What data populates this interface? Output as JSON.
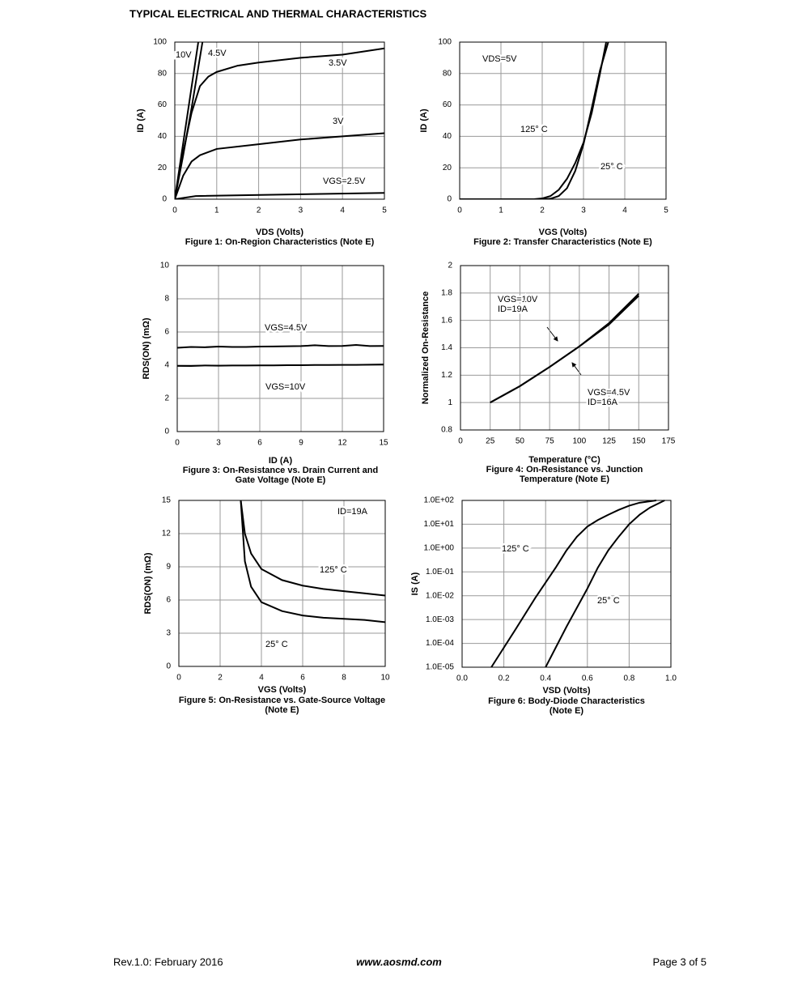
{
  "title": "TYPICAL ELECTRICAL AND THERMAL CHARACTERISTICS",
  "footer": {
    "left": "Rev.1.0: February 2016",
    "center": "www.aosmd.com",
    "right": "Page 3 of 5"
  },
  "chart_data": [
    {
      "type": "line",
      "xlabel": "VDS (Volts)",
      "ylabel": "ID (A)",
      "caption": [
        "Figure 1: On-Region Characteristics (Note E)"
      ],
      "xlim": [
        0,
        5
      ],
      "xticks": [
        0,
        1,
        2,
        3,
        4,
        5
      ],
      "ylim": [
        0,
        100
      ],
      "yticks": [
        0,
        20,
        40,
        60,
        80,
        100
      ],
      "grid": true,
      "series": [
        {
          "name": "10V",
          "color": "#000000",
          "x": [
            0,
            0.56
          ],
          "values": [
            0,
            100
          ]
        },
        {
          "name": "4.5V",
          "color": "#000000",
          "x": [
            0,
            0.2,
            0.4,
            0.66
          ],
          "values": [
            0,
            28,
            58,
            100
          ]
        },
        {
          "name": "3.5V",
          "color": "#000000",
          "x": [
            0,
            0.2,
            0.4,
            0.6,
            0.8,
            1,
            1.5,
            2,
            3,
            4,
            5
          ],
          "values": [
            0,
            30,
            55,
            72,
            78,
            81,
            85,
            87,
            90,
            92,
            96
          ]
        },
        {
          "name": "3V",
          "color": "#000000",
          "x": [
            0,
            0.2,
            0.4,
            0.6,
            1,
            2,
            3,
            4,
            5
          ],
          "values": [
            0,
            15,
            24,
            28,
            32,
            35,
            38,
            40,
            42
          ]
        },
        {
          "name": "VGS=2.5V",
          "color": "#000000",
          "x": [
            0,
            0.5,
            5
          ],
          "values": [
            0,
            2,
            4
          ]
        }
      ]
    },
    {
      "type": "line",
      "xlabel": "VGS (Volts)",
      "ylabel": "ID (A)",
      "caption": [
        "Figure 2: Transfer Characteristics (Note E)"
      ],
      "annotations": [
        "VDS=5V"
      ],
      "xlim": [
        0,
        5
      ],
      "xticks": [
        0,
        1,
        2,
        3,
        4,
        5
      ],
      "ylim": [
        0,
        100
      ],
      "yticks": [
        0,
        20,
        40,
        60,
        80,
        100
      ],
      "grid": true,
      "series": [
        {
          "name": "125° C",
          "color": "#000000",
          "x": [
            0,
            1.8,
            2.0,
            2.2,
            2.4,
            2.6,
            2.8,
            3.0,
            3.2,
            3.4,
            3.55
          ],
          "values": [
            0,
            0,
            0.5,
            2,
            6,
            13,
            23,
            36,
            55,
            80,
            100
          ]
        },
        {
          "name": "25° C",
          "color": "#000000",
          "x": [
            0,
            2.0,
            2.2,
            2.4,
            2.6,
            2.8,
            3.0,
            3.2,
            3.4,
            3.6
          ],
          "values": [
            0,
            0,
            0.3,
            2,
            7,
            18,
            35,
            58,
            82,
            100
          ]
        }
      ]
    },
    {
      "type": "line",
      "xlabel": "ID (A)",
      "ylabel": "RDS(ON) (mΩ)",
      "caption": [
        "Figure 3: On-Resistance vs. Drain Current and",
        "Gate Voltage (Note E)"
      ],
      "xlim": [
        0,
        15
      ],
      "xticks": [
        0,
        3,
        6,
        9,
        12,
        15
      ],
      "ylim": [
        0,
        10
      ],
      "yticks": [
        0,
        2,
        4,
        6,
        8,
        10
      ],
      "grid": true,
      "series": [
        {
          "name": "VGS=4.5V",
          "color": "#000000",
          "x": [
            0,
            1,
            2,
            3,
            4,
            5,
            6,
            7,
            8,
            9,
            10,
            11,
            12,
            13,
            14,
            15
          ],
          "values": [
            5.05,
            5.1,
            5.08,
            5.12,
            5.1,
            5.1,
            5.12,
            5.13,
            5.14,
            5.15,
            5.2,
            5.15,
            5.16,
            5.22,
            5.15,
            5.16
          ]
        },
        {
          "name": "VGS=10V",
          "color": "#000000",
          "x": [
            0,
            1,
            2,
            3,
            4,
            5,
            6,
            7,
            8,
            9,
            10,
            11,
            12,
            13,
            14,
            15
          ],
          "values": [
            3.96,
            3.95,
            3.98,
            3.97,
            3.98,
            3.98,
            3.99,
            3.99,
            4.0,
            4.0,
            4.01,
            4.01,
            4.02,
            4.02,
            4.03,
            4.04
          ]
        }
      ]
    },
    {
      "type": "line",
      "xlabel": "Temperature (°C)",
      "ylabel": "Normalized On-Resistance",
      "caption": [
        "Figure 4: On-Resistance vs. Junction",
        "Temperature (Note E)"
      ],
      "xlim": [
        0,
        175
      ],
      "xticks": [
        0,
        25,
        50,
        75,
        100,
        125,
        150,
        175
      ],
      "ylim": [
        0.8,
        2
      ],
      "yticks": [
        0.8,
        1,
        1.2,
        1.4,
        1.6,
        1.8,
        2
      ],
      "grid": true,
      "series": [
        {
          "name": "VGS=10V",
          "note": "ID=19A",
          "color": "#000000",
          "x": [
            25,
            50,
            75,
            100,
            125,
            150
          ],
          "values": [
            1,
            1.12,
            1.26,
            1.41,
            1.57,
            1.78
          ]
        },
        {
          "name": "VGS=4.5V",
          "note": "ID=16A",
          "color": "#000000",
          "x": [
            25,
            50,
            75,
            100,
            125,
            150
          ],
          "values": [
            1,
            1.12,
            1.26,
            1.41,
            1.58,
            1.795
          ]
        }
      ]
    },
    {
      "type": "line",
      "xlabel": "VGS (Volts)",
      "ylabel": "RDS(ON) (mΩ)",
      "caption": [
        "Figure 5: On-Resistance vs. Gate-Source Voltage",
        "(Note E)"
      ],
      "annotations": [
        "ID=19A"
      ],
      "xlim": [
        0,
        10
      ],
      "xticks": [
        0,
        2,
        4,
        6,
        8,
        10
      ],
      "ylim": [
        0,
        15
      ],
      "yticks": [
        0,
        3,
        6,
        9,
        12,
        15
      ],
      "grid": true,
      "series": [
        {
          "name": "125° C",
          "color": "#000000",
          "x": [
            3,
            3.2,
            3.5,
            4,
            5,
            6,
            7,
            8,
            9,
            10
          ],
          "values": [
            15,
            12,
            10.2,
            8.8,
            7.8,
            7.3,
            7.0,
            6.8,
            6.6,
            6.4
          ]
        },
        {
          "name": "25° C",
          "color": "#000000",
          "x": [
            3,
            3.2,
            3.5,
            4,
            5,
            6,
            7,
            8,
            9,
            10
          ],
          "values": [
            15,
            9.5,
            7.2,
            5.8,
            5.0,
            4.6,
            4.4,
            4.3,
            4.2,
            4.0
          ]
        }
      ]
    },
    {
      "type": "line",
      "xlabel": "VSD (Volts)",
      "ylabel": "IS (A)",
      "caption": [
        "Figure 6: Body-Diode Characteristics",
        "(Note E)"
      ],
      "ylog": true,
      "xlim": [
        0,
        1
      ],
      "xticks": [
        {
          "value": 0,
          "label": "0.0"
        },
        0.2,
        0.4,
        0.6,
        0.8,
        {
          "value": 1,
          "label": "1.0"
        }
      ],
      "ylim": [
        1e-05,
        100
      ],
      "yticks": [
        {
          "value": 1e-05,
          "label": "1.0E-05"
        },
        {
          "value": 0.0001,
          "label": "1.0E-04"
        },
        {
          "value": 0.001,
          "label": "1.0E-03"
        },
        {
          "value": 0.01,
          "label": "1.0E-02"
        },
        {
          "value": 0.1,
          "label": "1.0E-01"
        },
        {
          "value": 1,
          "label": "1.0E+00"
        },
        {
          "value": 10,
          "label": "1.0E+01"
        },
        {
          "value": 100,
          "label": "1.0E+02"
        }
      ],
      "grid": true,
      "series": [
        {
          "name": "125° C",
          "color": "#000000",
          "x": [
            0.14,
            0.25,
            0.35,
            0.45,
            0.5,
            0.55,
            0.6,
            0.65,
            0.7,
            0.75,
            0.8,
            0.85,
            0.93
          ],
          "values": [
            1e-05,
            0.00032,
            0.008,
            0.16,
            0.8,
            3,
            8,
            15,
            25,
            40,
            60,
            80,
            100
          ]
        },
        {
          "name": "25° C",
          "color": "#000000",
          "x": [
            0.4,
            0.5,
            0.6,
            0.65,
            0.7,
            0.75,
            0.8,
            0.85,
            0.9,
            0.97
          ],
          "values": [
            1e-05,
            0.0005,
            0.02,
            0.15,
            0.8,
            3,
            10,
            25,
            50,
            100
          ]
        }
      ]
    }
  ]
}
